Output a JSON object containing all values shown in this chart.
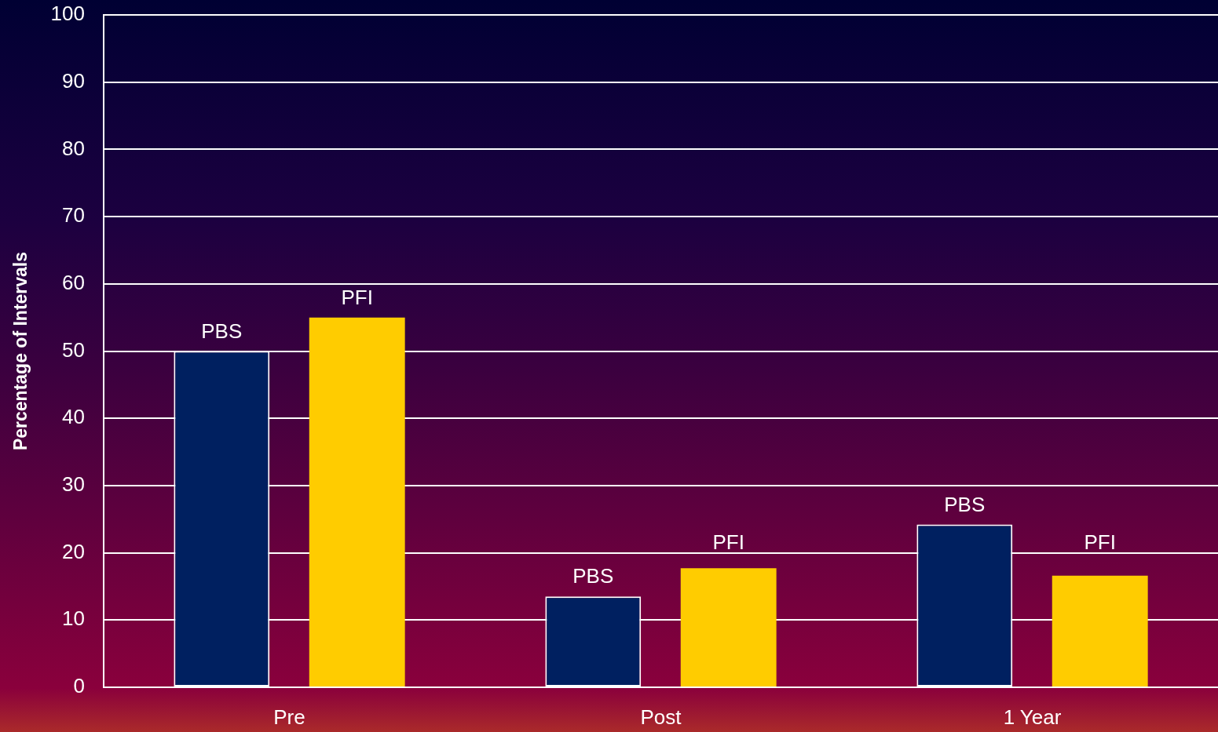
{
  "chart_data": {
    "type": "bar",
    "ylabel": "Percentage of Intervals",
    "categories": [
      "Pre",
      "Post",
      "1 Year"
    ],
    "series": [
      {
        "name": "PBS",
        "color": "#002060",
        "values": [
          50,
          13.5,
          24.2
        ]
      },
      {
        "name": "PFI",
        "color": "#ffcc00",
        "values": [
          55,
          17.7,
          16.6
        ]
      }
    ],
    "ylim": [
      0,
      100
    ],
    "yticks": [
      0,
      10,
      20,
      30,
      40,
      50,
      60,
      70,
      80,
      90,
      100
    ],
    "grid": "y",
    "legend": false
  }
}
